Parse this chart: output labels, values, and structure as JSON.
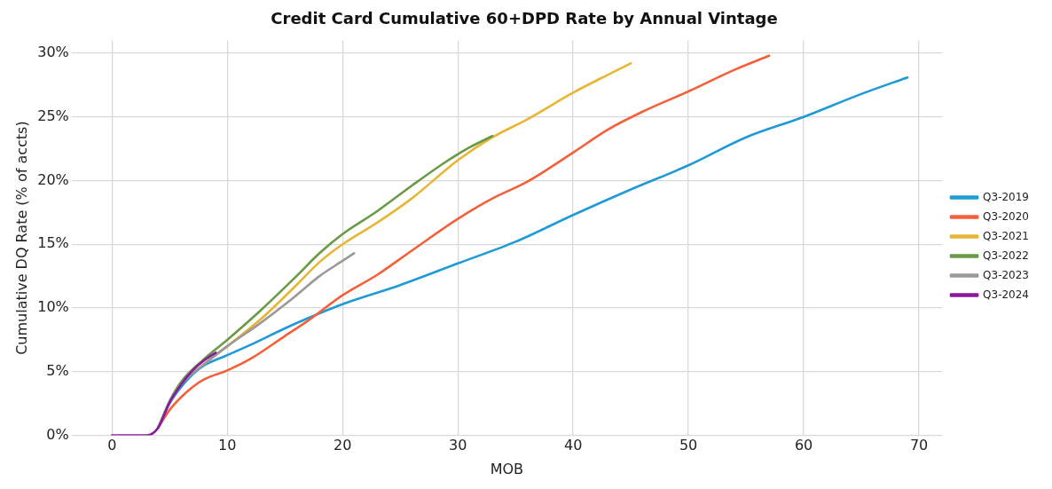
{
  "chart_data": {
    "type": "line",
    "title": "Credit Card Cumulative 60+DPD Rate by Annual Vintage",
    "xlabel": "MOB",
    "ylabel": "Cumulative DQ Rate (% of accts)",
    "xlim": [
      -3.5,
      72
    ],
    "xticks": [
      0,
      10,
      20,
      30,
      40,
      50,
      60,
      70
    ],
    "ylim": [
      0,
      31
    ],
    "yticks": [
      {
        "value": 0,
        "label": "0%"
      },
      {
        "value": 5,
        "label": "5%"
      },
      {
        "value": 10,
        "label": "10%"
      },
      {
        "value": 15,
        "label": "15%"
      },
      {
        "value": 20,
        "label": "20%"
      },
      {
        "value": 25,
        "label": "25%"
      },
      {
        "value": 30,
        "label": "30%"
      }
    ],
    "grid": true,
    "legend": "right",
    "marker": "none",
    "line_style": "solid",
    "series": [
      {
        "name": "Q3-2019",
        "color": "#1f9ad6",
        "x": [
          4,
          5,
          6,
          7,
          8,
          10,
          12,
          15,
          17,
          20,
          25,
          30,
          35,
          40,
          45,
          50,
          55,
          60,
          65,
          69
        ],
        "values": [
          0.6,
          2.5,
          3.8,
          4.8,
          5.5,
          6.3,
          7.1,
          8.4,
          9.2,
          10.3,
          11.8,
          13.5,
          15.2,
          17.3,
          19.3,
          21.2,
          23.4,
          25.0,
          26.8,
          28.1
        ]
      },
      {
        "name": "Q3-2020",
        "color": "#f4603a",
        "x": [
          4,
          5,
          6,
          7,
          8,
          10,
          12,
          15,
          17,
          20,
          23,
          26,
          30,
          33,
          36,
          40,
          43,
          46,
          50,
          54,
          57
        ],
        "values": [
          0.6,
          2.0,
          3.0,
          3.8,
          4.4,
          5.1,
          6.0,
          7.8,
          9.0,
          11.0,
          12.6,
          14.5,
          17.0,
          18.6,
          19.9,
          22.2,
          24.0,
          25.4,
          27.0,
          28.7,
          29.8
        ]
      },
      {
        "name": "Q3-2021",
        "color": "#e8b534",
        "x": [
          8,
          10,
          13,
          16,
          18,
          20,
          23,
          26,
          30,
          33,
          36,
          40,
          43,
          45
        ],
        "values": [
          5.6,
          7.0,
          9.2,
          11.8,
          13.6,
          15.0,
          16.7,
          18.6,
          21.6,
          23.4,
          24.8,
          26.9,
          28.3,
          29.2
        ]
      },
      {
        "name": "Q3-2022",
        "color": "#6a9a45",
        "x": [
          4,
          5,
          6,
          8,
          10,
          13,
          16,
          18,
          20,
          23,
          26,
          29,
          31,
          33
        ],
        "values": [
          0.6,
          2.7,
          4.2,
          6.0,
          7.5,
          9.9,
          12.5,
          14.3,
          15.8,
          17.6,
          19.6,
          21.5,
          22.6,
          23.5
        ]
      },
      {
        "name": "Q3-2023",
        "color": "#999999",
        "x": [
          4,
          5,
          6,
          8,
          10,
          13,
          16,
          18,
          20,
          21
        ],
        "values": [
          0.6,
          2.6,
          4.0,
          5.6,
          7.0,
          8.9,
          11.0,
          12.5,
          13.7,
          14.3
        ]
      },
      {
        "name": "Q3-2024",
        "color": "#8a1a9b",
        "x": [
          0,
          1,
          2,
          3,
          4,
          5,
          6,
          7,
          8,
          9
        ],
        "values": [
          0,
          0,
          0,
          0,
          0.6,
          2.6,
          4.0,
          5.1,
          5.9,
          6.5
        ]
      }
    ]
  }
}
